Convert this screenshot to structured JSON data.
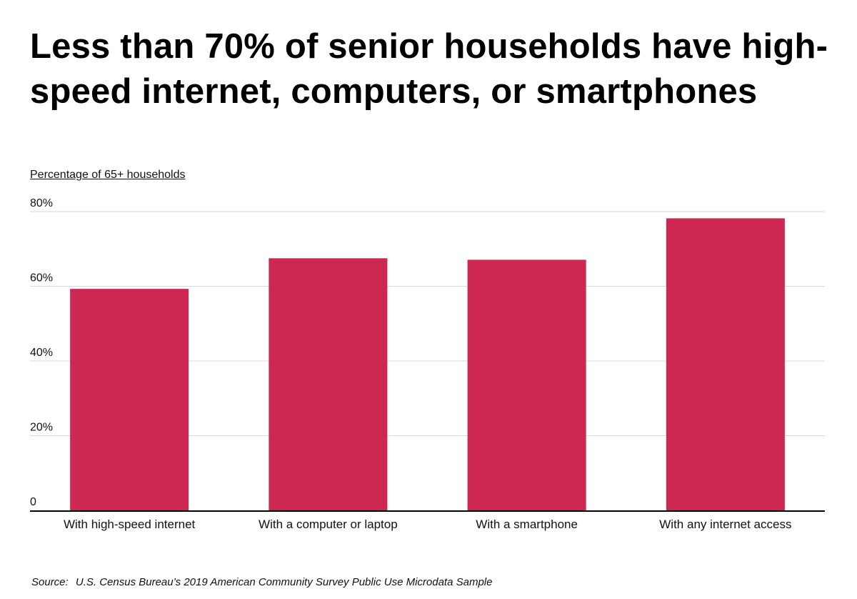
{
  "title": "Less than 70% of senior households have high-speed internet, computers, or smartphones",
  "source_lead": "Source:",
  "source_text": "U.S. Census Bureau’s 2019 American Community Survey Public Use Microdata Sample",
  "colors": {
    "bar": "#cc2851",
    "grid": "#d9d9d9",
    "axis": "#000000"
  },
  "chart_data": {
    "type": "bar",
    "ylabel": "Percentage of 65+ households",
    "categories": [
      "With high-speed internet",
      "With a computer or laptop",
      "With a smartphone",
      "With any internet access"
    ],
    "values": [
      59.3,
      67.5,
      67.1,
      78.2
    ],
    "ylim": [
      0,
      80
    ],
    "yticks": [
      0,
      20,
      40,
      60,
      80
    ],
    "ytick_labels": [
      "0",
      "20%",
      "40%",
      "60%",
      "80%"
    ],
    "grid": true
  }
}
